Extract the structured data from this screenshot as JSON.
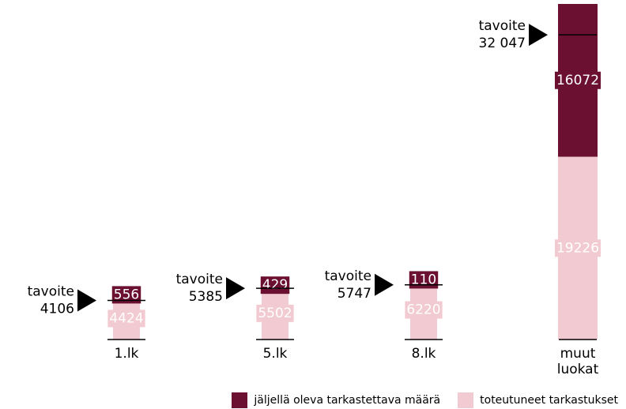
{
  "chart_data": {
    "type": "bar",
    "stacked": true,
    "categories": [
      "1.lk",
      "5.lk",
      "8.lk",
      "muut luokat"
    ],
    "series": [
      {
        "name": "toteutuneet tarkastukset",
        "color": "#f2cbd2",
        "values": [
          4424,
          5502,
          6220,
          19226
        ]
      },
      {
        "name": "jäljellä oleva tarkastettava määrä",
        "color": "#6b1030",
        "values": [
          556,
          429,
          110,
          16072
        ]
      }
    ],
    "targets": {
      "label": "tavoite",
      "values": [
        4106,
        5385,
        5747,
        32047
      ],
      "value_labels": [
        "4106",
        "5385",
        "5747",
        "32 047"
      ]
    },
    "legend": "bottom-right"
  }
}
